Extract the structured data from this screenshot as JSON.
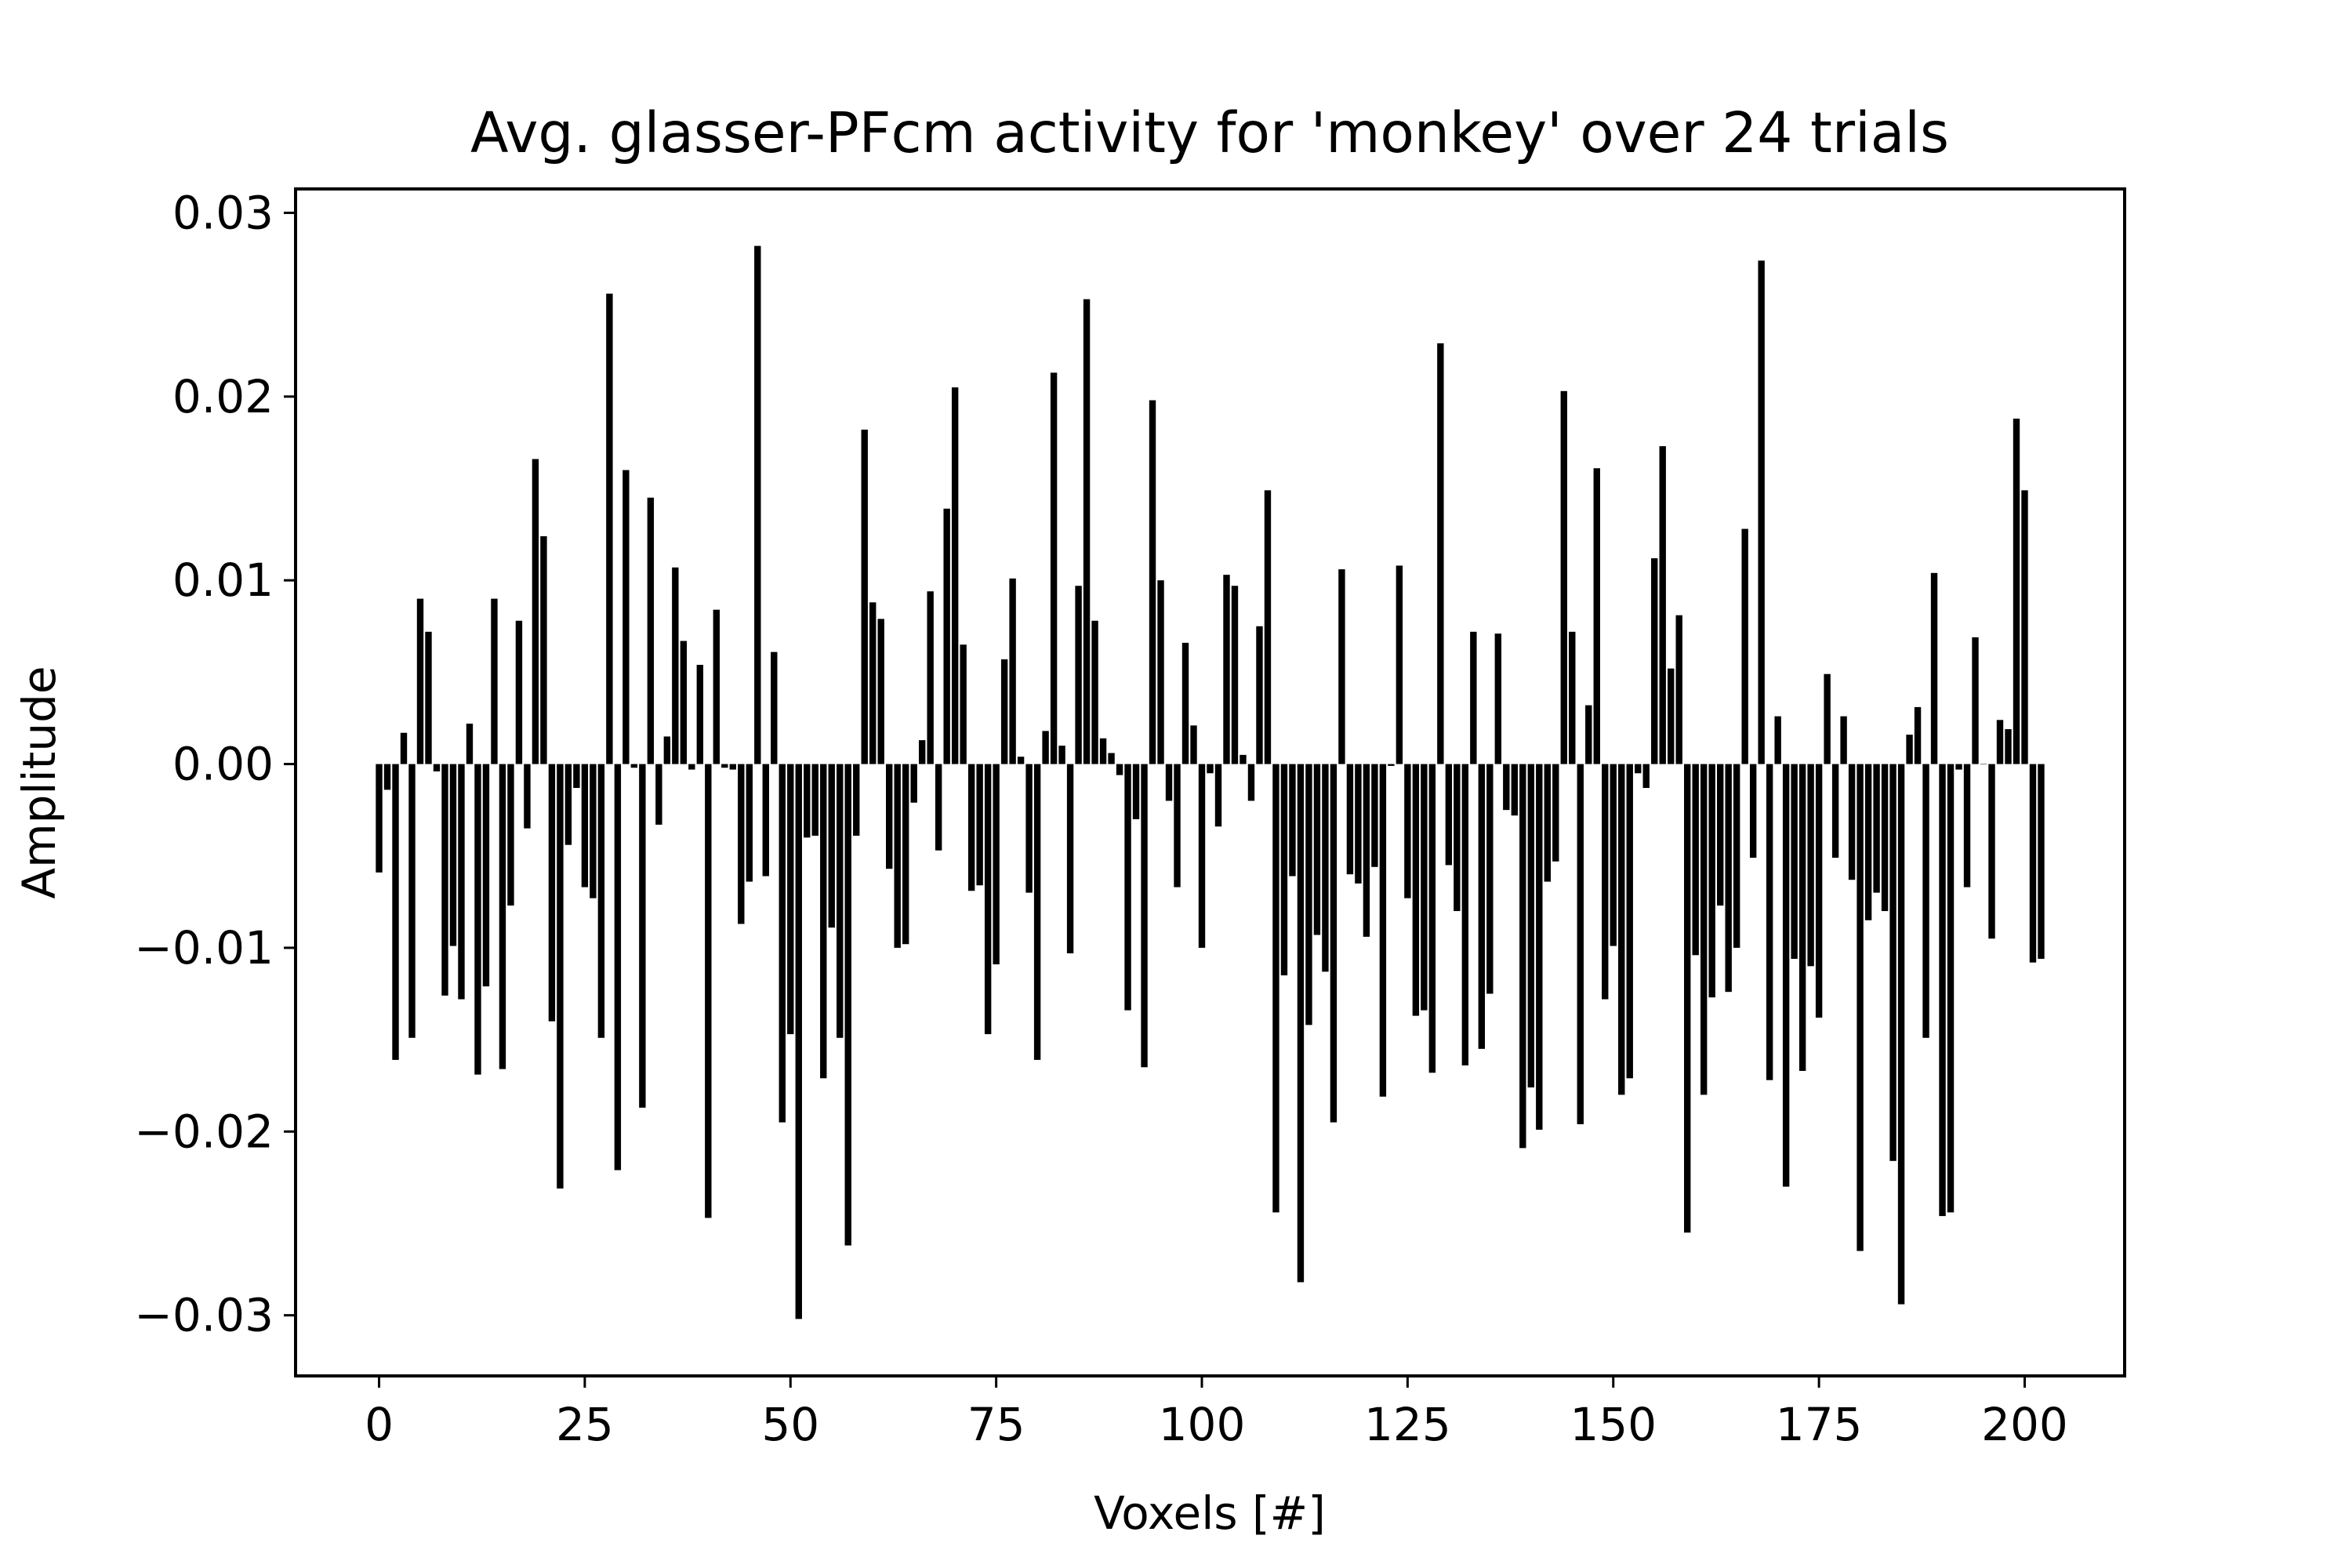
{
  "chart_data": {
    "type": "bar",
    "title": "Avg. glasser-PFcm activity for 'monkey' over 24 trials",
    "xlabel": "Voxels [#]",
    "ylabel": "Amplitude",
    "xlim": [
      -10.15,
      212.15
    ],
    "ylim": [
      -0.0333,
      0.0313
    ],
    "x_ticks": [
      0,
      25,
      50,
      75,
      100,
      125,
      150,
      175,
      200
    ],
    "x_tick_labels": [
      "0",
      "25",
      "50",
      "75",
      "100",
      "125",
      "150",
      "175",
      "200"
    ],
    "y_ticks": [
      -0.03,
      -0.02,
      -0.01,
      0.0,
      0.01,
      0.02,
      0.03
    ],
    "y_tick_labels": [
      "−0.03",
      "−0.02",
      "−0.01",
      "0.00",
      "0.01",
      "0.02",
      "0.03"
    ],
    "bar_color": "#000000",
    "grid": false,
    "legend": "none",
    "x": [
      0,
      1,
      2,
      3,
      4,
      5,
      6,
      7,
      8,
      9,
      10,
      11,
      12,
      13,
      14,
      15,
      16,
      17,
      18,
      19,
      20,
      21,
      22,
      23,
      24,
      25,
      26,
      27,
      28,
      29,
      30,
      31,
      32,
      33,
      34,
      35,
      36,
      37,
      38,
      39,
      40,
      41,
      42,
      43,
      44,
      45,
      46,
      47,
      48,
      49,
      50,
      51,
      52,
      53,
      54,
      55,
      56,
      57,
      58,
      59,
      60,
      61,
      62,
      63,
      64,
      65,
      66,
      67,
      68,
      69,
      70,
      71,
      72,
      73,
      74,
      75,
      76,
      77,
      78,
      79,
      80,
      81,
      82,
      83,
      84,
      85,
      86,
      87,
      88,
      89,
      90,
      91,
      92,
      93,
      94,
      95,
      96,
      97,
      98,
      99,
      100,
      101,
      102,
      103,
      104,
      105,
      106,
      107,
      108,
      109,
      110,
      111,
      112,
      113,
      114,
      115,
      116,
      117,
      118,
      119,
      120,
      121,
      122,
      123,
      124,
      125,
      126,
      127,
      128,
      129,
      130,
      131,
      132,
      133,
      134,
      135,
      136,
      137,
      138,
      139,
      140,
      141,
      142,
      143,
      144,
      145,
      146,
      147,
      148,
      149,
      150,
      151,
      152,
      153,
      154,
      155,
      156,
      157,
      158,
      159,
      160,
      161,
      162,
      163,
      164,
      165,
      166,
      167,
      168,
      169,
      170,
      171,
      172,
      173,
      174,
      175,
      176,
      177,
      178,
      179,
      180,
      181,
      182,
      183,
      184,
      185,
      186,
      187,
      188,
      189,
      190,
      191,
      192,
      193,
      194,
      195,
      196,
      197,
      198,
      199,
      200,
      201,
      202
    ],
    "values": [
      -0.0059,
      -0.0014,
      -0.0161,
      0.0017,
      -0.0149,
      0.009,
      0.0072,
      -0.0004,
      -0.0126,
      -0.0099,
      -0.0128,
      0.0022,
      -0.0169,
      -0.0121,
      0.009,
      -0.0166,
      -0.0077,
      0.0078,
      -0.0035,
      0.0166,
      0.0124,
      -0.014,
      -0.0231,
      -0.0044,
      -0.0013,
      -0.0067,
      -0.0073,
      -0.0149,
      0.0256,
      -0.0221,
      0.016,
      -0.0002,
      -0.0187,
      0.0145,
      -0.0033,
      0.0015,
      0.0107,
      0.0067,
      -0.0003,
      0.0054,
      -0.0247,
      0.0084,
      -0.0002,
      -0.0003,
      -0.0087,
      -0.0064,
      0.0282,
      -0.0061,
      0.0061,
      -0.0195,
      -0.0147,
      -0.0302,
      -0.004,
      -0.0039,
      -0.0171,
      -0.0089,
      -0.0149,
      -0.0262,
      -0.0039,
      0.0182,
      0.0088,
      0.0079,
      -0.0057,
      -0.01,
      -0.0098,
      -0.0021,
      0.0013,
      0.0094,
      -0.0047,
      0.0139,
      0.0205,
      0.0065,
      -0.0069,
      -0.0066,
      -0.0147,
      -0.0109,
      0.0057,
      0.0101,
      0.0004,
      -0.007,
      -0.0161,
      0.0018,
      0.0213,
      0.001,
      -0.0103,
      0.0097,
      0.0253,
      0.0078,
      0.0014,
      0.0006,
      -0.0006,
      -0.0134,
      -0.003,
      -0.0165,
      0.0198,
      0.01,
      -0.002,
      -0.0067,
      0.0066,
      0.0021,
      -0.01,
      -0.0005,
      -0.0034,
      0.0103,
      0.0097,
      0.0005,
      -0.002,
      0.0075,
      0.0149,
      -0.0244,
      -0.0115,
      -0.0061,
      -0.0282,
      -0.0142,
      -0.0093,
      -0.0113,
      -0.0195,
      0.0106,
      -0.006,
      -0.0065,
      -0.0094,
      -0.0056,
      -0.0181,
      -0.0001,
      0.0108,
      -0.0073,
      -0.0137,
      -0.0134,
      -0.0168,
      0.0229,
      -0.0055,
      -0.008,
      -0.0164,
      0.0072,
      -0.0155,
      -0.0125,
      0.0071,
      -0.0025,
      -0.0028,
      -0.0209,
      -0.0176,
      -0.0199,
      -0.0064,
      -0.0053,
      0.0203,
      0.0072,
      -0.0196,
      0.0032,
      0.0161,
      -0.0128,
      -0.0099,
      -0.018,
      -0.0171,
      -0.0005,
      -0.0013,
      0.0112,
      0.0173,
      0.0052,
      0.0081,
      -0.0255,
      -0.0104,
      -0.018,
      -0.0127,
      -0.0077,
      -0.0124,
      -0.01,
      0.0128,
      -0.0051,
      0.0274,
      -0.0172,
      0.0026,
      -0.023,
      -0.0106,
      -0.0167,
      -0.011,
      -0.0138,
      0.0049,
      -0.0051,
      0.0026,
      -0.0063,
      -0.0265,
      -0.0085,
      -0.007,
      -0.008,
      -0.0216,
      -0.0294,
      0.0016,
      0.0031,
      -0.0149,
      0.0104,
      -0.0246,
      -0.0244,
      -0.0003,
      -0.0067,
      0.0069,
      0.0,
      -0.0095,
      0.0024,
      0.0019,
      0.0188,
      0.0149,
      -0.0108,
      -0.0106
    ]
  }
}
